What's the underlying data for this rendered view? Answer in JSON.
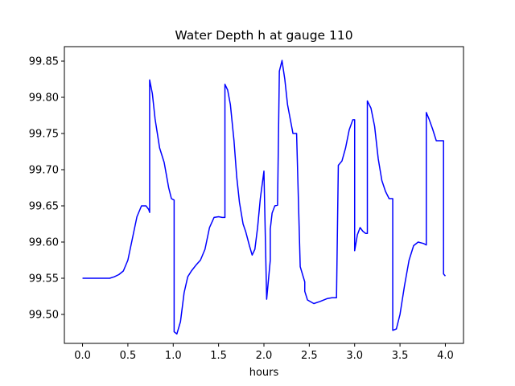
{
  "chart_data": {
    "type": "line",
    "title": "Water Depth h at gauge 110",
    "xlabel": "hours",
    "ylabel": "",
    "xlim": [
      -0.2,
      4.2
    ],
    "ylim": [
      99.46,
      99.87
    ],
    "grid": false,
    "x_ticks": [
      0.0,
      0.5,
      1.0,
      1.5,
      2.0,
      2.5,
      3.0,
      3.5,
      4.0
    ],
    "x_tick_labels": [
      "0.0",
      "0.5",
      "1.0",
      "1.5",
      "2.0",
      "2.5",
      "3.0",
      "3.5",
      "4.0"
    ],
    "y_ticks": [
      99.5,
      99.55,
      99.6,
      99.65,
      99.7,
      99.75,
      99.8,
      99.85
    ],
    "y_tick_labels": [
      "99.50",
      "99.55",
      "99.60",
      "99.65",
      "99.70",
      "99.75",
      "99.80",
      "99.85"
    ],
    "series": [
      {
        "color": "#0000ff",
        "x": [
          0.0,
          0.1,
          0.2,
          0.3,
          0.35,
          0.4,
          0.45,
          0.5,
          0.55,
          0.6,
          0.65,
          0.7,
          0.73,
          0.74,
          0.74,
          0.77,
          0.8,
          0.85,
          0.9,
          0.95,
          0.98,
          1.01,
          1.01,
          1.04,
          1.08,
          1.12,
          1.16,
          1.2,
          1.25,
          1.3,
          1.35,
          1.4,
          1.45,
          1.5,
          1.54,
          1.57,
          1.57,
          1.6,
          1.63,
          1.67,
          1.7,
          1.73,
          1.77,
          1.8,
          1.84,
          1.87,
          1.9,
          1.93,
          1.96,
          2.0,
          2.03,
          2.07,
          2.07,
          2.09,
          2.12,
          2.15,
          2.17,
          2.19,
          2.2,
          2.2,
          2.23,
          2.26,
          2.29,
          2.32,
          2.36,
          2.4,
          2.45,
          2.45,
          2.48,
          2.55,
          2.62,
          2.7,
          2.75,
          2.8,
          2.82,
          2.82,
          2.86,
          2.9,
          2.94,
          2.98,
          3.0,
          3.0,
          3.03,
          3.06,
          3.09,
          3.12,
          3.14,
          3.14,
          3.18,
          3.22,
          3.26,
          3.3,
          3.34,
          3.38,
          3.42,
          3.42,
          3.46,
          3.5,
          3.55,
          3.6,
          3.65,
          3.7,
          3.76,
          3.79,
          3.79,
          3.82,
          3.86,
          3.9,
          3.94,
          3.97,
          3.98,
          3.98,
          4.0
        ],
        "y": [
          99.55,
          99.55,
          99.55,
          99.55,
          99.552,
          99.555,
          99.56,
          99.575,
          99.605,
          99.635,
          99.65,
          99.65,
          99.645,
          99.641,
          99.824,
          99.805,
          99.77,
          99.73,
          99.71,
          99.675,
          99.66,
          99.658,
          99.476,
          99.473,
          99.49,
          99.53,
          99.552,
          99.56,
          99.568,
          99.575,
          99.59,
          99.62,
          99.634,
          99.635,
          99.634,
          99.634,
          99.818,
          99.81,
          99.79,
          99.74,
          99.69,
          99.655,
          99.625,
          99.614,
          99.595,
          99.582,
          99.59,
          99.62,
          99.66,
          99.698,
          99.521,
          99.575,
          99.618,
          99.64,
          99.65,
          99.651,
          99.836,
          99.846,
          99.851,
          99.85,
          99.825,
          99.79,
          99.77,
          99.75,
          99.75,
          99.566,
          99.545,
          99.532,
          99.52,
          99.515,
          99.518,
          99.522,
          99.523,
          99.523,
          99.706,
          99.706,
          99.712,
          99.73,
          99.755,
          99.769,
          99.769,
          99.588,
          99.61,
          99.62,
          99.615,
          99.612,
          99.612,
          99.795,
          99.785,
          99.76,
          99.715,
          99.685,
          99.67,
          99.66,
          99.66,
          99.478,
          99.48,
          99.5,
          99.54,
          99.575,
          99.595,
          99.6,
          99.598,
          99.596,
          99.779,
          99.77,
          99.756,
          99.74,
          99.74,
          99.74,
          99.74,
          99.556,
          99.553
        ]
      }
    ]
  }
}
